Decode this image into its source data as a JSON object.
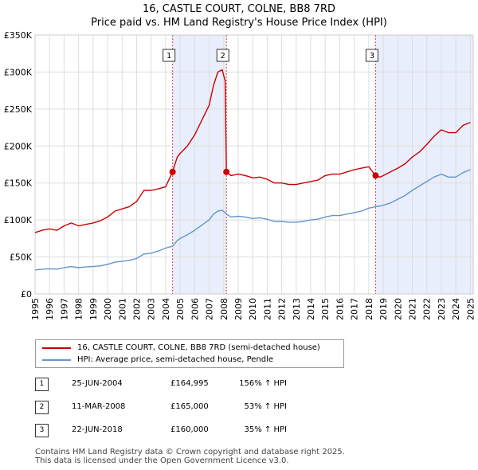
{
  "title": "16, CASTLE COURT, COLNE, BB8 7RD",
  "subtitle": "Price paid vs. HM Land Registry's House Price Index (HPI)",
  "colors": {
    "property": "#cc0000",
    "hpi": "#6495cd",
    "shade": "#e8eefb",
    "vline": "#dd4444"
  },
  "chart_data": {
    "type": "line",
    "title": "16, CASTLE COURT, COLNE, BB8 7RD",
    "subtitle": "Price paid vs. HM Land Registry's House Price Index (HPI)",
    "xlim": [
      1995,
      2025.2
    ],
    "ylim": [
      0,
      350000
    ],
    "y_ticks": [
      0,
      50000,
      100000,
      150000,
      200000,
      250000,
      300000,
      350000
    ],
    "y_tick_labels": [
      "£0",
      "£50K",
      "£100K",
      "£150K",
      "£200K",
      "£250K",
      "£300K",
      "£350K"
    ],
    "x_ticks": [
      1995,
      1996,
      1997,
      1998,
      1999,
      2000,
      2001,
      2002,
      2003,
      2004,
      2005,
      2006,
      2007,
      2008,
      2009,
      2010,
      2011,
      2012,
      2013,
      2014,
      2015,
      2016,
      2017,
      2018,
      2019,
      2020,
      2021,
      2022,
      2023,
      2024,
      2025
    ],
    "x_tick_labels": [
      "1995",
      "1996",
      "1997",
      "1998",
      "1999",
      "2000",
      "2001",
      "2002",
      "2003",
      "2004",
      "2005",
      "2006",
      "2007",
      "2008",
      "2009",
      "2010",
      "2011",
      "2012",
      "2013",
      "2014",
      "2015",
      "2016",
      "2017",
      "2018",
      "2019",
      "2020",
      "2021",
      "2022",
      "2023",
      "2024",
      "2025"
    ],
    "grid": true,
    "legend_position": "below",
    "series": [
      {
        "name": "16, CASTLE COURT, COLNE, BB8 7RD (semi-detached house)",
        "color": "#cc0000",
        "x": [
          1995,
          1995.5,
          1996,
          1996.5,
          1997,
          1997.5,
          1998,
          1998.5,
          1999,
          1999.5,
          2000,
          2000.5,
          2001,
          2001.5,
          2002,
          2002.5,
          2003,
          2003.5,
          2004,
          2004.48,
          2004.8,
          2005,
          2005.5,
          2006,
          2006.5,
          2007,
          2007.3,
          2007.6,
          2007.9,
          2008.1,
          2008.19,
          2008.5,
          2009,
          2009.5,
          2010,
          2010.5,
          2011,
          2011.5,
          2012,
          2012.5,
          2013,
          2013.5,
          2014,
          2014.5,
          2015,
          2015.5,
          2016,
          2016.5,
          2017,
          2017.5,
          2018,
          2018.47,
          2018.8,
          2019,
          2019.5,
          2020,
          2020.5,
          2021,
          2021.5,
          2022,
          2022.5,
          2023,
          2023.5,
          2024,
          2024.5,
          2025
        ],
        "values": [
          83000,
          86000,
          88000,
          86000,
          92000,
          96000,
          92000,
          94000,
          96000,
          99000,
          104000,
          112000,
          115000,
          118000,
          125000,
          140000,
          140000,
          142000,
          145000,
          164995,
          185000,
          190000,
          200000,
          215000,
          235000,
          255000,
          282000,
          300000,
          303000,
          288000,
          165000,
          160000,
          162000,
          160000,
          157000,
          158000,
          155000,
          150000,
          150000,
          148000,
          148000,
          150000,
          152000,
          154000,
          160000,
          162000,
          162000,
          165000,
          168000,
          170000,
          172000,
          160000,
          158000,
          160000,
          165000,
          170000,
          176000,
          185000,
          192000,
          202000,
          213000,
          222000,
          218000,
          218000,
          228000,
          232000
        ]
      },
      {
        "name": "HPI: Average price, semi-detached house, Pendle",
        "color": "#6495cd",
        "x": [
          1995,
          1995.5,
          1996,
          1996.5,
          1997,
          1997.5,
          1998,
          1998.5,
          1999,
          1999.5,
          2000,
          2000.5,
          2001,
          2001.5,
          2002,
          2002.5,
          2003,
          2003.5,
          2004,
          2004.48,
          2004.8,
          2005,
          2005.5,
          2006,
          2006.5,
          2007,
          2007.3,
          2007.6,
          2007.9,
          2008.1,
          2008.19,
          2008.5,
          2009,
          2009.5,
          2010,
          2010.5,
          2011,
          2011.5,
          2012,
          2012.5,
          2013,
          2013.5,
          2014,
          2014.5,
          2015,
          2015.5,
          2016,
          2016.5,
          2017,
          2017.5,
          2018,
          2018.47,
          2018.8,
          2019,
          2019.5,
          2020,
          2020.5,
          2021,
          2021.5,
          2022,
          2022.5,
          2023,
          2023.5,
          2024,
          2024.5,
          2025
        ],
        "values": [
          32500,
          33500,
          34000,
          33500,
          35500,
          37000,
          35500,
          36500,
          37000,
          38000,
          40000,
          43000,
          44000,
          45500,
          48000,
          54000,
          55000,
          58000,
          62000,
          64500,
          72000,
          75000,
          80000,
          86000,
          93000,
          100000,
          108000,
          112000,
          113000,
          110000,
          108000,
          104000,
          105000,
          104000,
          102000,
          103000,
          101000,
          98000,
          98000,
          97000,
          97000,
          98000,
          100000,
          101000,
          104000,
          106000,
          106000,
          108000,
          110000,
          112000,
          116000,
          118000,
          119000,
          120000,
          123000,
          128000,
          133000,
          140000,
          146000,
          152000,
          158000,
          162000,
          158000,
          158000,
          164000,
          168000
        ]
      }
    ],
    "annotations": [
      {
        "label": "1",
        "x": 2004.48,
        "y": 164995
      },
      {
        "label": "2",
        "x": 2008.19,
        "y": 165000
      },
      {
        "label": "3",
        "x": 2018.47,
        "y": 160000
      }
    ],
    "shaded_ranges": [
      [
        2004.48,
        2008.19
      ],
      [
        2018.47,
        2025.2
      ]
    ]
  },
  "legend": {
    "property_label": "16, CASTLE COURT, COLNE, BB8 7RD (semi-detached house)",
    "hpi_label": "HPI: Average price, semi-detached house, Pendle"
  },
  "sales": [
    {
      "num": "1",
      "date": "25-JUN-2004",
      "price": "£164,995",
      "pct": "156% ↑ HPI"
    },
    {
      "num": "2",
      "date": "11-MAR-2008",
      "price": "£165,000",
      "pct": "53% ↑ HPI"
    },
    {
      "num": "3",
      "date": "22-JUN-2018",
      "price": "£160,000",
      "pct": "35% ↑ HPI"
    }
  ],
  "footer": {
    "line1": "Contains HM Land Registry data © Crown copyright and database right 2025.",
    "line2": "This data is licensed under the Open Government Licence v3.0."
  }
}
